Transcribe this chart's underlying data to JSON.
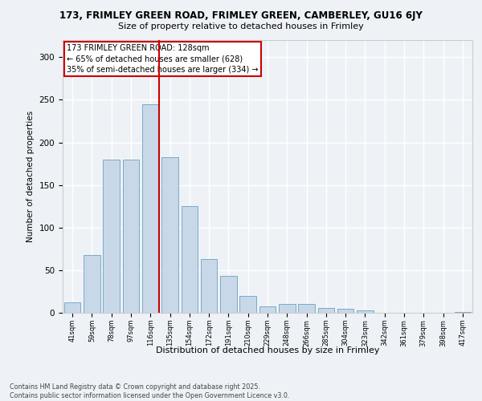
{
  "title_line1": "173, FRIMLEY GREEN ROAD, FRIMLEY GREEN, CAMBERLEY, GU16 6JY",
  "title_line2": "Size of property relative to detached houses in Frimley",
  "xlabel": "Distribution of detached houses by size in Frimley",
  "ylabel": "Number of detached properties",
  "categories": [
    "41sqm",
    "59sqm",
    "78sqm",
    "97sqm",
    "116sqm",
    "135sqm",
    "154sqm",
    "172sqm",
    "191sqm",
    "210sqm",
    "229sqm",
    "248sqm",
    "266sqm",
    "285sqm",
    "304sqm",
    "323sqm",
    "342sqm",
    "361sqm",
    "379sqm",
    "398sqm",
    "417sqm"
  ],
  "values": [
    12,
    68,
    180,
    180,
    245,
    183,
    125,
    63,
    43,
    20,
    8,
    10,
    10,
    6,
    5,
    3,
    0,
    0,
    0,
    0,
    1
  ],
  "bar_color": "#c8d8e8",
  "bar_edge_color": "#7aaac8",
  "highlight_index": 4,
  "vline_color": "#cc0000",
  "annotation_title": "173 FRIMLEY GREEN ROAD: 128sqm",
  "annotation_line1": "← 65% of detached houses are smaller (628)",
  "annotation_line2": "35% of semi-detached houses are larger (334) →",
  "annotation_box_color": "#ffffff",
  "annotation_box_edge_color": "#cc0000",
  "ylim": [
    0,
    320
  ],
  "yticks": [
    0,
    50,
    100,
    150,
    200,
    250,
    300
  ],
  "background_color": "#eef2f7",
  "grid_color": "#ffffff",
  "footer_line1": "Contains HM Land Registry data © Crown copyright and database right 2025.",
  "footer_line2": "Contains public sector information licensed under the Open Government Licence v3.0."
}
